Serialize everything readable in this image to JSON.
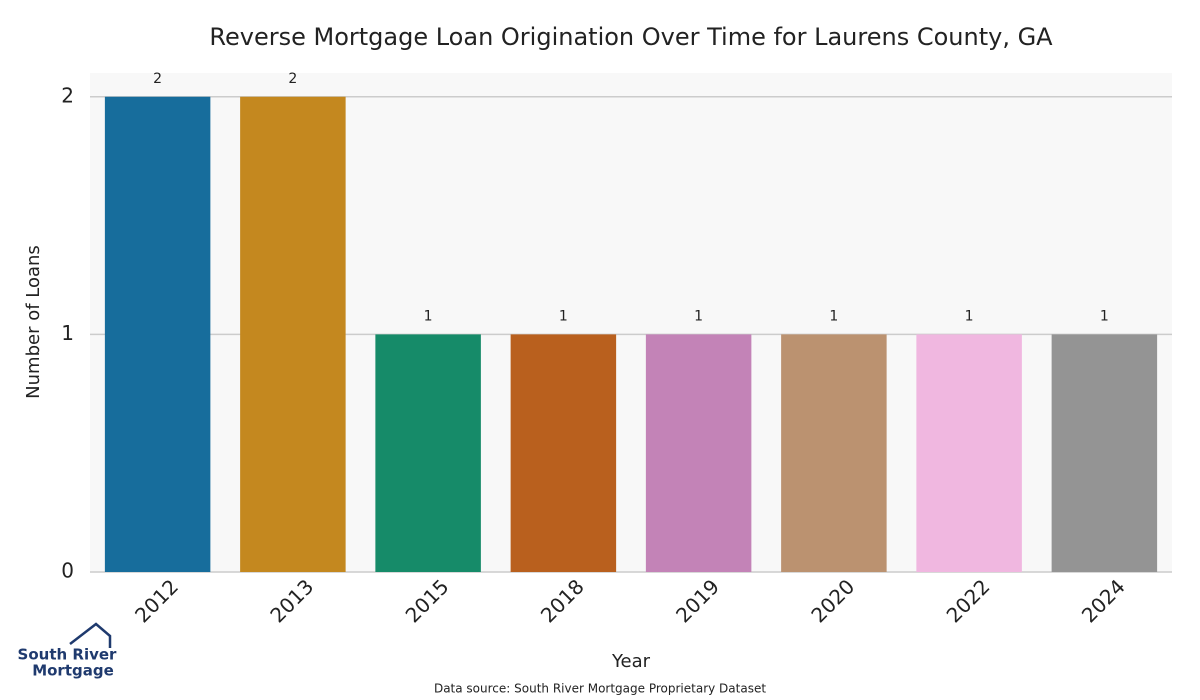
{
  "chart_data": {
    "type": "bar",
    "title": "Reverse Mortgage Loan Origination Over Time for Laurens County, GA",
    "x_label": "Year",
    "y_label": "Number of Loans",
    "categories": [
      "2012",
      "2013",
      "2015",
      "2018",
      "2019",
      "2020",
      "2022",
      "2024"
    ],
    "values": [
      2,
      2,
      1,
      1,
      1,
      1,
      1,
      1
    ],
    "colors": [
      "#176d9c",
      "#c4881f",
      "#168b69",
      "#b9601e",
      "#c383b7",
      "#bb9270",
      "#f0b7e0",
      "#949494"
    ],
    "ylim": [
      0,
      2.1
    ],
    "yticks": [
      0,
      1,
      2
    ],
    "grid": true,
    "source": "Data source: South River Mortgage Proprietary Dataset"
  },
  "logo": {
    "line1": "South River",
    "line2": "Mortgage"
  }
}
